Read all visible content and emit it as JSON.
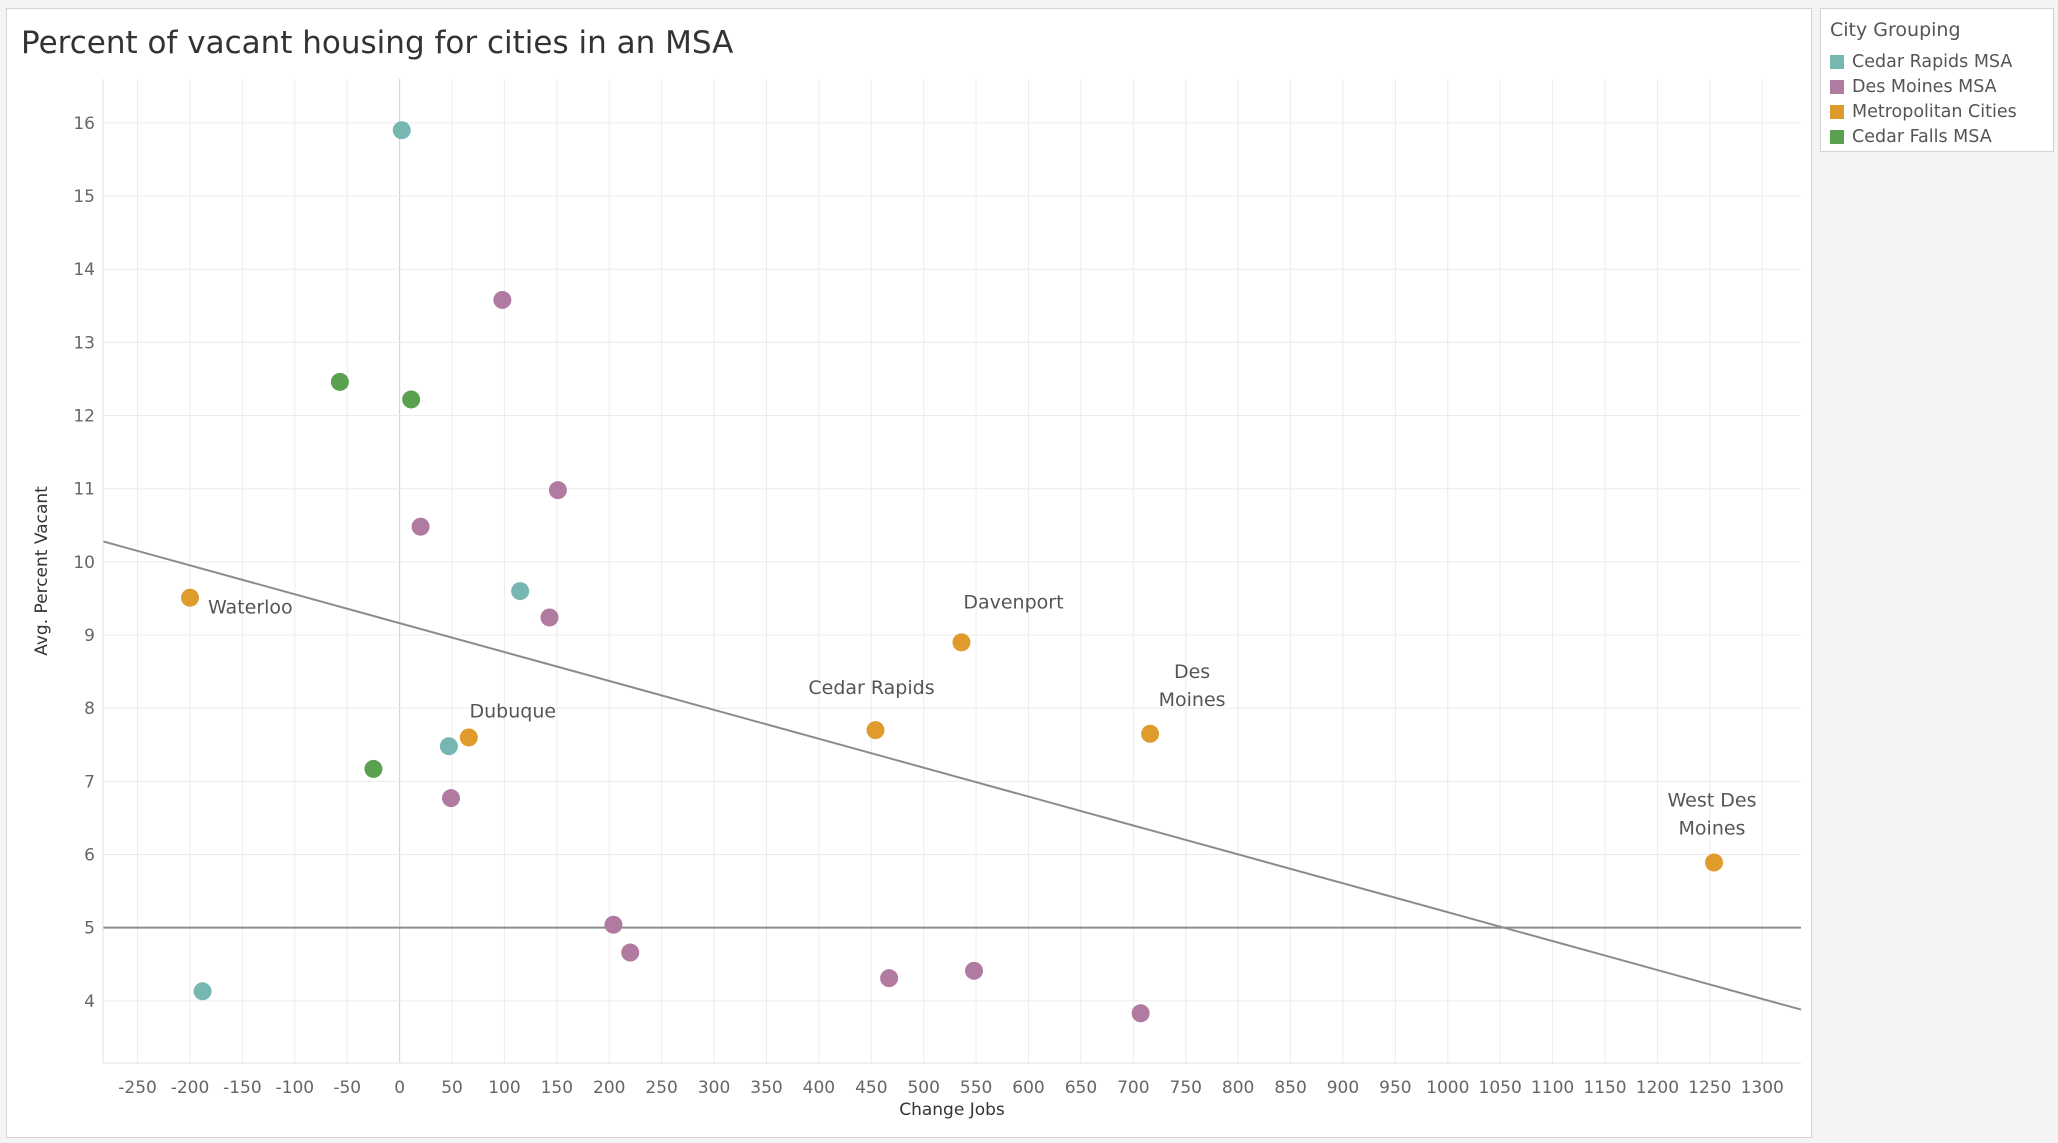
{
  "colors": {
    "Cedar Rapids MSA": "#76b7b2",
    "Des Moines MSA": "#b07aa1",
    "Metropolitan Cities": "#e09b2d",
    "Cedar Falls MSA": "#59a14f",
    "trend_line": "#8c8c8c",
    "reference_line": "#8c8c8c",
    "grid": "#ececec",
    "zero_line": "#d0d0d0",
    "tick_text": "#666666",
    "axis_title": "#333333",
    "label_text": "#555555"
  },
  "legend": {
    "title": "City Grouping",
    "items": [
      {
        "label": "Cedar Rapids MSA",
        "color": "#76b7b2"
      },
      {
        "label": "Des Moines MSA",
        "color": "#b07aa1"
      },
      {
        "label": "Metropolitan Cities",
        "color": "#e09b2d"
      },
      {
        "label": "Cedar Falls MSA",
        "color": "#59a14f"
      }
    ]
  },
  "chart_data": {
    "type": "scatter",
    "title": "Percent of vacant housing for cities in an MSA",
    "xlabel": "Change Jobs",
    "ylabel": "Avg. Percent Vacant",
    "xlim": [
      -283,
      1337
    ],
    "ylim": [
      3.15,
      16.6
    ],
    "x_ticks": [
      -250,
      -200,
      -150,
      -100,
      -50,
      0,
      50,
      100,
      150,
      200,
      250,
      300,
      350,
      400,
      450,
      500,
      550,
      600,
      650,
      700,
      750,
      800,
      850,
      900,
      950,
      1000,
      1050,
      1100,
      1150,
      1200,
      1250,
      1300
    ],
    "y_ticks": [
      4,
      5,
      6,
      7,
      8,
      9,
      10,
      11,
      12,
      13,
      14,
      15,
      16
    ],
    "grid": true,
    "legend_position": "right",
    "reference_line": {
      "y": 5
    },
    "trend_line": {
      "x": [
        -283,
        1337
      ],
      "y": [
        10.28,
        3.88
      ]
    },
    "series": [
      {
        "name": "Cedar Rapids MSA",
        "points": [
          {
            "x": 2,
            "y": 15.9
          },
          {
            "x": 115,
            "y": 9.6
          },
          {
            "x": 47,
            "y": 7.48
          },
          {
            "x": -188,
            "y": 4.13
          }
        ]
      },
      {
        "name": "Des Moines MSA",
        "points": [
          {
            "x": 98,
            "y": 13.58
          },
          {
            "x": 151,
            "y": 10.98
          },
          {
            "x": 20,
            "y": 10.48
          },
          {
            "x": 143,
            "y": 9.24
          },
          {
            "x": 49,
            "y": 6.77
          },
          {
            "x": 204,
            "y": 5.04
          },
          {
            "x": 220,
            "y": 4.66
          },
          {
            "x": 467,
            "y": 4.31
          },
          {
            "x": 548,
            "y": 4.41
          },
          {
            "x": 707,
            "y": 3.83
          }
        ]
      },
      {
        "name": "Metropolitan Cities",
        "points": [
          {
            "x": -200,
            "y": 9.51,
            "label": "Waterloo"
          },
          {
            "x": 536,
            "y": 8.9,
            "label": "Davenport"
          },
          {
            "x": 454,
            "y": 7.7,
            "label": "Cedar Rapids"
          },
          {
            "x": 716,
            "y": 7.65,
            "label": "Des Moines"
          },
          {
            "x": 66,
            "y": 7.6,
            "label": "Dubuque"
          },
          {
            "x": 1254,
            "y": 5.89,
            "label": "West Des Moines"
          }
        ]
      },
      {
        "name": "Cedar Falls MSA",
        "points": [
          {
            "x": -57,
            "y": 12.46
          },
          {
            "x": 11,
            "y": 12.22
          },
          {
            "x": -25,
            "y": 7.17
          }
        ]
      }
    ]
  }
}
